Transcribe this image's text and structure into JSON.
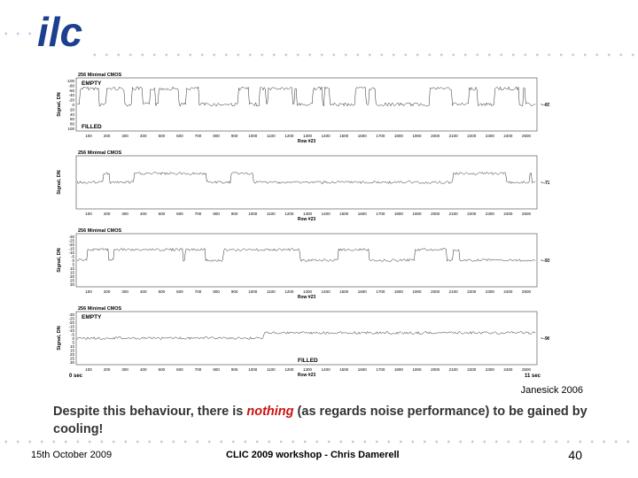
{
  "logo": {
    "text": "ilc",
    "color": "#1d3f8f"
  },
  "panels": [
    {
      "title": "256 Minimal CMOS",
      "ylabel": "Signal, DN",
      "yticks": [
        "-100",
        "-80",
        "-60",
        "-40",
        "-20",
        "0",
        "20",
        "40",
        "60",
        "80",
        "100"
      ],
      "xticks": [
        "100",
        "200",
        "300",
        "400",
        "500",
        "600",
        "700",
        "800",
        "900",
        "1000",
        "1100",
        "1200",
        "1300",
        "1400",
        "1500",
        "1600",
        "1700",
        "1800",
        "1900",
        "2000",
        "2100",
        "2200",
        "2300",
        "2400",
        "2500"
      ],
      "xlabel": "Row #23",
      "temperature": "~-65°C",
      "annotations": [
        "EMPTY",
        "FILLED"
      ]
    },
    {
      "title": "256 Minimal CMOS",
      "ylabel": "Signal, DN",
      "yticks": [],
      "xticks": [
        "100",
        "200",
        "300",
        "400",
        "500",
        "600",
        "700",
        "800",
        "900",
        "1000",
        "1100",
        "1200",
        "1300",
        "1400",
        "1500",
        "1600",
        "1700",
        "1800",
        "1900",
        "2000",
        "2100",
        "2200",
        "2300",
        "2400",
        "2500"
      ],
      "xlabel": "Row #23",
      "temperature": "~-72°C",
      "annotations": []
    },
    {
      "title": "256 Minimal CMOS",
      "ylabel": "Signal, DN",
      "yticks": [
        "-30",
        "-25",
        "-20",
        "-15",
        "-10",
        "-5",
        "0",
        "5",
        "10",
        "15",
        "20",
        "25",
        "30"
      ],
      "xticks": [
        "100",
        "200",
        "300",
        "400",
        "500",
        "600",
        "700",
        "800",
        "900",
        "1000",
        "1100",
        "1200",
        "1300",
        "1400",
        "1500",
        "1600",
        "1700",
        "1800",
        "1900",
        "2000",
        "2100",
        "2200",
        "2300",
        "2400",
        "2500"
      ],
      "xlabel": "Row #23",
      "temperature": "~-91°C",
      "annotations": []
    },
    {
      "title": "256 Minimal CMOS",
      "ylabel": "Signal, DN",
      "yticks": [
        "-30",
        "-25",
        "-20",
        "-15",
        "-10",
        "-5",
        "0",
        "5",
        "10",
        "15",
        "20",
        "25",
        "30"
      ],
      "xticks": [
        "100",
        "200",
        "300",
        "400",
        "500",
        "600",
        "700",
        "800",
        "900",
        "1000",
        "1100",
        "1200",
        "1300",
        "1400",
        "1500",
        "1600",
        "1700",
        "1800",
        "1900",
        "2000",
        "2100",
        "2200",
        "2300",
        "2400",
        "2500"
      ],
      "xlabel": "Row #23",
      "temperature": "~-96°C",
      "annotations": [
        "EMPTY",
        "FILLED"
      ]
    }
  ],
  "time_start": "0 sec",
  "time_end": "11 sec",
  "credit": "Janesick 2006",
  "caption": {
    "before": "Despite this behaviour, there is ",
    "emphasis": "nothing",
    "after": " (as regards noise performance) to be gained by cooling!"
  },
  "footer": {
    "date": "15th October 2009",
    "center": "CLIC 2009 workshop - Chris Damerell",
    "page": "40"
  },
  "colors": {
    "accent": "#cc1111",
    "dots": "#c5cde0",
    "logo": "#1d3f8f"
  }
}
